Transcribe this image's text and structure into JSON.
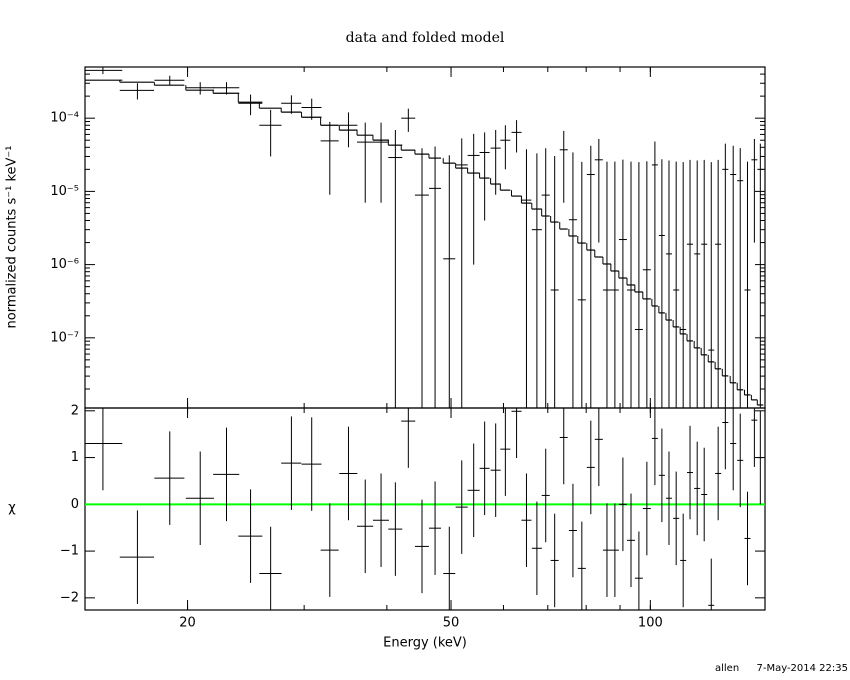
{
  "chart_data": [
    {
      "type": "errorbar",
      "title": "data and folded model",
      "ylabel": "normalized counts s⁻¹ keV⁻¹",
      "xscale": "log",
      "yscale": "log",
      "xlim": [
        14,
        149
      ],
      "ylim": [
        1.1e-08,
        0.0005
      ],
      "xticks": [
        20,
        50,
        100
      ],
      "yticks": [
        {
          "value": 1e-07,
          "label": "10⁻⁷"
        },
        {
          "value": 1e-06,
          "label": "10⁻⁶"
        },
        {
          "value": 1e-05,
          "label": "10⁻⁵"
        },
        {
          "value": 0.0001,
          "label": "10⁻⁴"
        }
      ],
      "color": "#000000",
      "model_color": "#000000",
      "x": [
        14.9,
        16.8,
        18.8,
        20.9,
        22.9,
        24.9,
        26.7,
        28.7,
        30.8,
        32.8,
        35.0,
        37.1,
        39.2,
        41.2,
        43.1,
        45.2,
        47.3,
        49.7,
        51.9,
        54.1,
        56.2,
        58.4,
        60.4,
        62.8,
        65.0,
        67.4,
        69.5,
        71.7,
        74.0,
        76.4,
        78.8,
        81.3,
        83.6,
        86.0,
        88.4,
        90.9,
        93.5,
        96.1,
        98.8,
        101.6,
        104.1,
        106.7,
        109.4,
        112.1,
        114.8,
        117.7,
        120.6,
        123.6,
        126.6,
        129.8,
        133.4,
        136.7,
        140.2,
        143.6,
        146.6
      ],
      "xerr": [
        1.04,
        1.0,
        0.98,
        1.02,
        1.04,
        1.04,
        1.03,
        1.0,
        1.07,
        1.03,
        1.1,
        1.04,
        1.09,
        1.0,
        1.05,
        1.1,
        0.99,
        1.04,
        1.09,
        1.13,
        0.98,
        1.02,
        1.05,
        1.1,
        1.13,
        1.18,
        0.97,
        1.0,
        1.03,
        1.07,
        1.1,
        1.13,
        1.17,
        1.2,
        1.23,
        1.27,
        1.3,
        1.34,
        1.38,
        1.06,
        1.09,
        1.12,
        1.15,
        1.17,
        1.2,
        1.23,
        1.26,
        1.29,
        1.33,
        1.36,
        1.4,
        1.43,
        1.47,
        1.5,
        1.53
      ],
      "values": [
        0.00045,
        0.00024,
        0.00033,
        0.00026,
        0.00026,
        0.00016,
        8e-05,
        0.00016,
        0.00014,
        4.9e-05,
        8e-05,
        4.7e-05,
        4.7e-05,
        2.9e-05,
        0.0001,
        8.9e-06,
        1.1e-05,
        1.2e-06,
        2.3e-05,
        3.1e-05,
        3.4e-05,
        3.9e-05,
        5e-05,
        6.4e-05,
        7.6e-06,
        3e-06,
        8.9e-06,
        4.5e-07,
        3.7e-05,
        4.1e-06,
        3.3e-07,
        1.7e-05,
        2.7e-05,
        4.5e-07,
        4.5e-07,
        2.2e-06,
        4.5e-07,
        1.3e-07,
        8.5e-07,
        2.3e-05,
        2.5e-06,
        1.4e-06,
        4.5e-07,
        1.3e-07,
        1.9e-06,
        1.4e-06,
        1.9e-06,
        6.8e-08,
        1.9e-06,
        2e-05,
        1.7e-05,
        1.4e-05,
        4.5e-07,
        2.7e-05,
        2e-05
      ],
      "errors": [
        5e-05,
        6e-05,
        5e-05,
        5e-05,
        5e-05,
        5e-05,
        5e-05,
        4.5e-05,
        4.5e-05,
        4e-05,
        4e-05,
        4e-05,
        4e-05,
        4e-05,
        3.5e-05,
        3e-05,
        3e-05,
        3e-05,
        3e-05,
        3e-05,
        3e-05,
        3e-05,
        3e-05,
        3e-05,
        3e-05,
        3e-05,
        3e-05,
        3e-05,
        3e-05,
        3e-05,
        2.5e-05,
        2.5e-05,
        2.5e-05,
        2.5e-05,
        2.5e-05,
        2.5e-05,
        2.5e-05,
        2.5e-05,
        2.5e-05,
        2.5e-05,
        2.5e-05,
        2.5e-05,
        2.5e-05,
        2.5e-05,
        2.5e-05,
        2.5e-05,
        2.5e-05,
        2.5e-05,
        2.5e-05,
        2.5e-05,
        2.5e-05,
        2.5e-05,
        2.5e-05,
        2.5e-05,
        2.5e-05
      ],
      "model": [
        0.00033,
        0.00031,
        0.000282,
        0.000241,
        0.000219,
        0.000165,
        0.000137,
        0.000121,
        0.000103,
        8e-05,
        6.86e-05,
        5.86e-05,
        5.01e-05,
        4.28e-05,
        3.66e-05,
        3.23e-05,
        2.85e-05,
        2.43e-05,
        2.08e-05,
        1.78e-05,
        1.52e-05,
        1.26e-05,
        1.04e-05,
        8.63e-06,
        6.92e-06,
        5.74e-06,
        4.61e-06,
        3.81e-06,
        3.06e-06,
        2.46e-06,
        1.97e-06,
        1.58e-06,
        1.27e-06,
        1.02e-06,
        8.18e-07,
        6.56e-07,
        5.27e-07,
        4.23e-07,
        3.4e-07,
        2.72e-07,
        2.19e-07,
        1.75e-07,
        1.41e-07,
        1.13e-07,
        9.07e-08,
        7.28e-08,
        5.85e-08,
        4.69e-08,
        3.77e-08,
        3.02e-08,
        2.43e-08,
        1.95e-08,
        1.66e-08,
        1.42e-08,
        1.21e-08
      ]
    },
    {
      "type": "residual",
      "xlabel": "Energy (keV)",
      "ylabel": "χ",
      "ylim": [
        -2.26,
        2.06
      ],
      "yticks": [
        {
          "value": -2,
          "label": "−2"
        },
        {
          "value": -1,
          "label": "−1"
        },
        0,
        1,
        2
      ],
      "color": "#000000",
      "reference_value": 0,
      "reference_color": "#00ff00",
      "yerr": 1,
      "values": [
        1.3,
        -1.13,
        0.56,
        0.13,
        0.64,
        -0.68,
        -1.48,
        0.88,
        0.86,
        -0.98,
        0.66,
        -0.47,
        -0.34,
        -0.53,
        1.78,
        -0.9,
        -0.51,
        -1.48,
        -0.06,
        0.3,
        0.77,
        0.73,
        1.18,
        1.99,
        -0.34,
        -0.94,
        0.19,
        -1.2,
        1.43,
        -0.56,
        -1.37,
        0.79,
        1.39,
        -0.98,
        -0.98,
        0,
        -0.77,
        -1.58,
        -0.09,
        1.41,
        0.62,
        0.13,
        -0.3,
        -1.2,
        0.68,
        0.34,
        0.21,
        -2.16,
        0.66,
        1.75,
        1.3,
        0.94,
        -0.73,
        1.8,
        1.0
      ]
    }
  ],
  "footer": {
    "user": "allen",
    "timestamp": "7-May-2014 22:35"
  }
}
